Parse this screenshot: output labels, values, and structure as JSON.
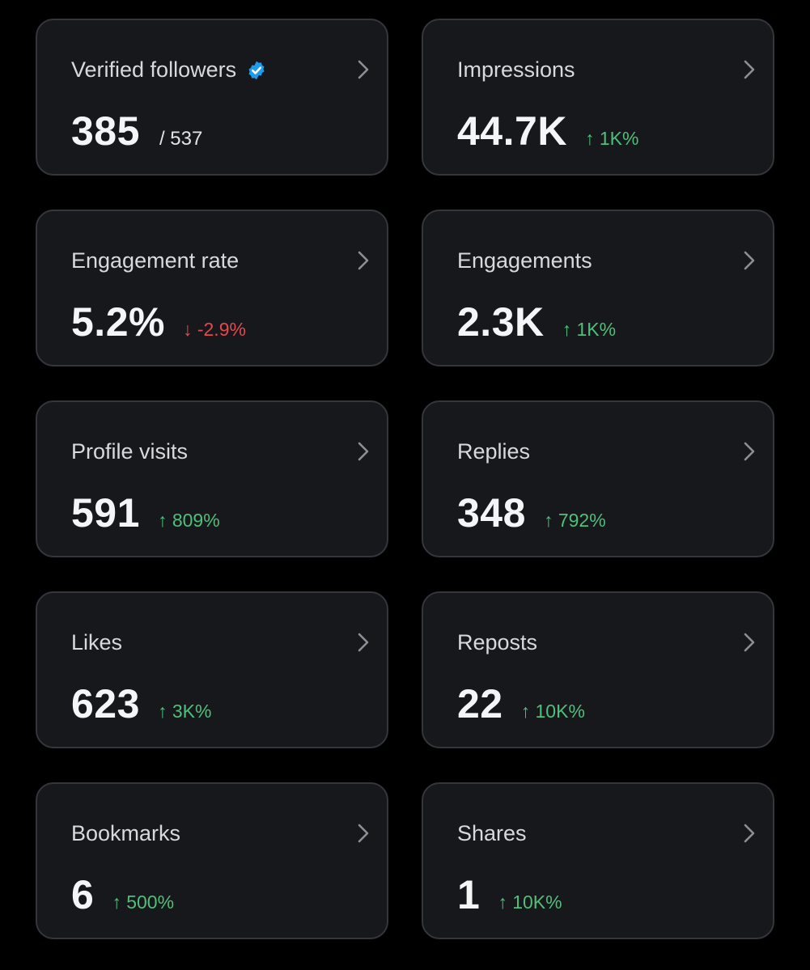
{
  "colors": {
    "background": "#000000",
    "card": "#17181c",
    "border": "#34363c",
    "positive": "#4fbf7a",
    "negative": "#e5484d",
    "verified": "#1d9bf0"
  },
  "cards": [
    {
      "label": "Verified followers",
      "value": "385",
      "total": "/ 537",
      "verified": true
    },
    {
      "label": "Impressions",
      "value": "44.7K",
      "change": "↑ 1K%",
      "trend": "up"
    },
    {
      "label": "Engagement rate",
      "value": "5.2%",
      "change": "↓ -2.9%",
      "trend": "down"
    },
    {
      "label": "Engagements",
      "value": "2.3K",
      "change": "↑ 1K%",
      "trend": "up"
    },
    {
      "label": "Profile visits",
      "value": "591",
      "change": "↑ 809%",
      "trend": "up"
    },
    {
      "label": "Replies",
      "value": "348",
      "change": "↑ 792%",
      "trend": "up"
    },
    {
      "label": "Likes",
      "value": "623",
      "change": "↑ 3K%",
      "trend": "up"
    },
    {
      "label": "Reposts",
      "value": "22",
      "change": "↑ 10K%",
      "trend": "up"
    },
    {
      "label": "Bookmarks",
      "value": "6",
      "change": "↑ 500%",
      "trend": "up"
    },
    {
      "label": "Shares",
      "value": "1",
      "change": "↑ 10K%",
      "trend": "up"
    }
  ]
}
